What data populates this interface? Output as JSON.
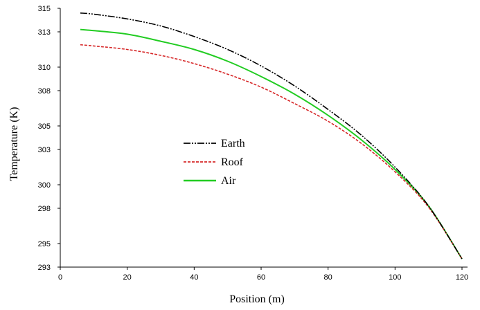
{
  "chart_data": {
    "type": "line",
    "title": "",
    "xlabel": "Position (m)",
    "ylabel": "Temperature (K)",
    "xlim": [
      0,
      120
    ],
    "ylim": [
      293,
      315
    ],
    "x_ticks": [
      0,
      20,
      40,
      60,
      80,
      100,
      120
    ],
    "y_ticks": [
      293,
      295,
      298,
      300,
      303,
      305,
      308,
      310,
      313,
      315
    ],
    "grid": false,
    "legend_position": "center-left",
    "series": [
      {
        "name": "Earth",
        "color": "#000000",
        "line_style": "dash-dot-dot",
        "x": [
          6,
          10,
          20,
          30,
          40,
          50,
          60,
          70,
          80,
          90,
          100,
          110,
          120
        ],
        "y": [
          314.6,
          314.5,
          314.1,
          313.5,
          312.6,
          311.5,
          310.1,
          308.4,
          306.4,
          304.2,
          301.5,
          298.2,
          293.7
        ]
      },
      {
        "name": "Roof",
        "color": "#d62728",
        "line_style": "dashed",
        "x": [
          6,
          10,
          20,
          30,
          40,
          50,
          60,
          70,
          80,
          90,
          100,
          110,
          120
        ],
        "y": [
          311.9,
          311.8,
          311.5,
          311.0,
          310.3,
          309.4,
          308.3,
          306.9,
          305.4,
          303.5,
          301.1,
          298.1,
          293.7
        ]
      },
      {
        "name": "Air",
        "color": "#22cc22",
        "line_style": "solid",
        "x": [
          6,
          10,
          20,
          30,
          40,
          50,
          60,
          70,
          80,
          90,
          100,
          110,
          120
        ],
        "y": [
          313.2,
          313.1,
          312.8,
          312.2,
          311.5,
          310.5,
          309.2,
          307.7,
          305.9,
          303.8,
          301.3,
          298.2,
          293.7
        ]
      }
    ]
  }
}
